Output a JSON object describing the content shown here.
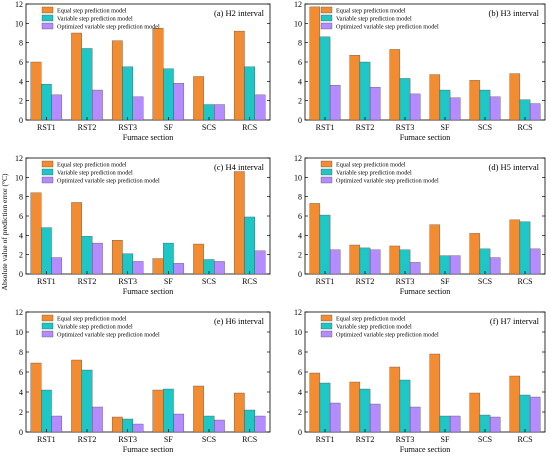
{
  "y_axis_label": "Absolute value of prediction error (°C)",
  "colors": {
    "equal": "#F28C33",
    "variable": "#1EC6C6",
    "optimized": "#B48CFF"
  },
  "chart_data": [
    {
      "type": "bar",
      "annotation": "(a) H2 interval",
      "xlabel": "Furnace section",
      "ylabel": "Absolute value of prediction error (°C)",
      "categories": [
        "RST1",
        "RST2",
        "RST3",
        "SF",
        "SCS",
        "RCS"
      ],
      "ylim": [
        0,
        12
      ],
      "yticks": [
        0,
        2,
        4,
        6,
        8,
        10,
        12
      ],
      "legend_position": "top-left",
      "series": [
        {
          "name": "Equal step prediction model",
          "values": [
            6.0,
            9.0,
            8.2,
            9.5,
            4.5,
            9.2
          ]
        },
        {
          "name": "Variable step prediction model",
          "values": [
            3.7,
            7.4,
            5.5,
            5.3,
            1.6,
            5.5
          ]
        },
        {
          "name": "Optimized variable step prediction model",
          "values": [
            2.6,
            3.1,
            2.4,
            3.8,
            1.6,
            2.6
          ]
        }
      ]
    },
    {
      "type": "bar",
      "annotation": "(b) H3 interval",
      "xlabel": "Furnace section",
      "ylabel": "",
      "categories": [
        "RST1",
        "RST2",
        "RST3",
        "SF",
        "SCS",
        "RCS"
      ],
      "ylim": [
        0,
        12
      ],
      "yticks": [
        0,
        2,
        4,
        6,
        8,
        10,
        12
      ],
      "legend_position": "top-left",
      "series": [
        {
          "name": "Equal step prediction model",
          "values": [
            11.7,
            6.7,
            7.3,
            4.7,
            4.1,
            4.8
          ]
        },
        {
          "name": "Variable step prediction model",
          "values": [
            8.6,
            6.0,
            4.3,
            3.1,
            3.1,
            2.1
          ]
        },
        {
          "name": "Optimized variable step prediction model",
          "values": [
            3.6,
            3.4,
            2.7,
            2.3,
            2.4,
            1.7
          ]
        }
      ]
    },
    {
      "type": "bar",
      "annotation": "(c) H4 interval",
      "xlabel": "Furnace section",
      "ylabel": "",
      "categories": [
        "RST1",
        "RST2",
        "RST3",
        "SF",
        "SCS",
        "RCS"
      ],
      "ylim": [
        0,
        12
      ],
      "yticks": [
        0,
        2,
        4,
        6,
        8,
        10,
        12
      ],
      "legend_position": "top-left",
      "series": [
        {
          "name": "Equal step prediction model",
          "values": [
            8.4,
            7.4,
            3.5,
            1.6,
            3.1,
            10.6
          ]
        },
        {
          "name": "Variable step prediction model",
          "values": [
            4.8,
            3.9,
            2.1,
            3.2,
            1.5,
            5.9
          ]
        },
        {
          "name": "Optimized variable step prediction model",
          "values": [
            1.7,
            3.2,
            1.3,
            1.1,
            1.3,
            2.4
          ]
        }
      ]
    },
    {
      "type": "bar",
      "annotation": "(d) H5 interval",
      "xlabel": "Furnace section",
      "ylabel": "",
      "categories": [
        "RST1",
        "RST2",
        "RST3",
        "SF",
        "SCS",
        "RCS"
      ],
      "ylim": [
        0,
        12
      ],
      "yticks": [
        0,
        2,
        4,
        6,
        8,
        10,
        12
      ],
      "legend_position": "top-left",
      "series": [
        {
          "name": "Equal step prediction model",
          "values": [
            7.3,
            3.0,
            2.9,
            5.1,
            4.2,
            5.6
          ]
        },
        {
          "name": "Variable step prediction model",
          "values": [
            6.1,
            2.7,
            2.5,
            1.9,
            2.6,
            5.4
          ]
        },
        {
          "name": "Optimized variable step prediction model",
          "values": [
            2.5,
            2.5,
            1.2,
            1.9,
            1.7,
            2.6
          ]
        }
      ]
    },
    {
      "type": "bar",
      "annotation": "(e) H6 interval",
      "xlabel": "Furnace section",
      "ylabel": "",
      "categories": [
        "RST1",
        "RST2",
        "RST3",
        "SF",
        "SCS",
        "RCS"
      ],
      "ylim": [
        0,
        12
      ],
      "yticks": [
        0,
        2,
        4,
        6,
        8,
        10,
        12
      ],
      "legend_position": "top-left",
      "series": [
        {
          "name": "Equal step prediction model",
          "values": [
            6.9,
            7.2,
            1.5,
            4.2,
            4.6,
            3.9
          ]
        },
        {
          "name": "Variable step prediction model",
          "values": [
            4.2,
            6.2,
            1.3,
            4.3,
            1.6,
            2.2
          ]
        },
        {
          "name": "Optimized variable step prediction model",
          "values": [
            1.6,
            2.5,
            0.8,
            1.8,
            1.2,
            1.6
          ]
        }
      ]
    },
    {
      "type": "bar",
      "annotation": "(f) H7 interval",
      "xlabel": "Furnace section",
      "ylabel": "",
      "categories": [
        "RST1",
        "RST2",
        "RST3",
        "SF",
        "SCS",
        "RCS"
      ],
      "ylim": [
        0,
        12
      ],
      "yticks": [
        0,
        2,
        4,
        6,
        8,
        10,
        12
      ],
      "legend_position": "top-left",
      "series": [
        {
          "name": "Equal step prediction model",
          "values": [
            5.9,
            5.0,
            6.5,
            7.8,
            3.9,
            5.6
          ]
        },
        {
          "name": "Variable step prediction model",
          "values": [
            4.9,
            4.3,
            5.2,
            1.6,
            1.7,
            3.7
          ]
        },
        {
          "name": "Optimized variable step prediction model",
          "values": [
            2.9,
            2.8,
            2.5,
            1.6,
            1.5,
            3.5
          ]
        }
      ]
    }
  ]
}
